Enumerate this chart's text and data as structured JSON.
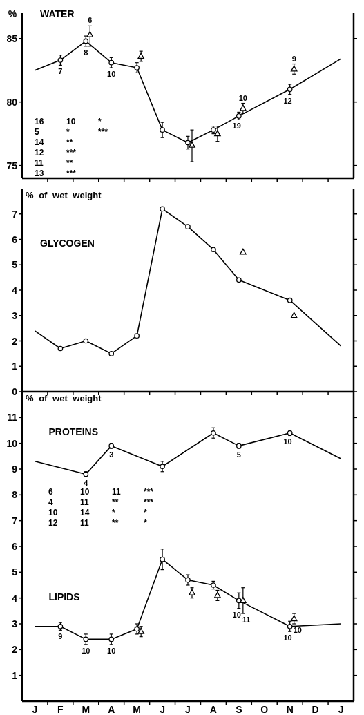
{
  "chart_data": [
    {
      "type": "line",
      "title": "WATER",
      "ylabel": "%",
      "categories": [
        "J",
        "F",
        "M",
        "A",
        "M",
        "J",
        "J",
        "A",
        "S",
        "O",
        "N",
        "D",
        "J"
      ],
      "ylim": [
        74,
        87
      ],
      "yticks": [
        75,
        80,
        85
      ],
      "tick_labels": "y",
      "series": [
        {
          "type": "line",
          "color": "#000000",
          "marker": "none",
          "values": [
            82.5,
            83.3,
            84.8,
            83.1,
            82.7,
            77.8,
            76.8,
            77.8,
            78.9,
            null,
            81.0,
            null,
            83.4
          ]
        },
        {
          "type": "scatter",
          "color": "#000000",
          "marker": "circle",
          "values": [
            null,
            83.3,
            84.8,
            83.1,
            82.7,
            77.8,
            76.8,
            77.8,
            78.9,
            null,
            81.0,
            null,
            null
          ],
          "errors": [
            null,
            0.4,
            0.4,
            0.4,
            0.4,
            0.6,
            0.5,
            0.3,
            0.3,
            null,
            0.4,
            null,
            null
          ]
        },
        {
          "type": "scatter",
          "color": "#000000",
          "marker": "triangle",
          "values": [
            null,
            null,
            85.3,
            null,
            83.6,
            null,
            76.6,
            77.5,
            79.5,
            null,
            82.6,
            null,
            null
          ],
          "errors": [
            null,
            null,
            [
              84.4,
              86.0
            ],
            null,
            0.4,
            null,
            [
              75.3,
              77.8
            ],
            0.6,
            0.4,
            null,
            0.4,
            null,
            null
          ]
        }
      ],
      "annotations": [
        {
          "text": "7",
          "x": "F",
          "y": 83.3
        },
        {
          "text": "8",
          "x": "M",
          "y": 84.8
        },
        {
          "text": "10",
          "x": "A",
          "y": 83.1
        },
        {
          "text": "19",
          "x": "S",
          "y": 78.9
        },
        {
          "text": "12",
          "x": "N",
          "y": 81.0
        },
        {
          "text": "6",
          "x": "M",
          "y": 85.3
        },
        {
          "text": "10",
          "x": "S",
          "y": 79.5
        },
        {
          "text": "9",
          "x": "N",
          "y": 82.6
        },
        "16",
        "5",
        "14",
        "12",
        "11",
        "13",
        "10",
        "*",
        "**",
        "***",
        "**",
        "***",
        "*",
        "***"
      ]
    },
    {
      "type": "line",
      "title": "GLYCOGEN",
      "ylabel": "% of wet weight",
      "categories": [
        "J",
        "F",
        "M",
        "A",
        "M",
        "J",
        "J",
        "A",
        "S",
        "O",
        "N",
        "D",
        "J"
      ],
      "ylim": [
        0,
        8
      ],
      "yticks": [
        0,
        1,
        2,
        3,
        4,
        5,
        6,
        7
      ],
      "tick_labels": "y",
      "series": [
        {
          "type": "line",
          "color": "#000000",
          "marker": "none",
          "values": [
            2.4,
            1.7,
            2.0,
            1.5,
            2.2,
            7.2,
            6.5,
            5.6,
            4.4,
            null,
            3.6,
            null,
            1.8
          ]
        },
        {
          "type": "scatter",
          "color": "#000000",
          "marker": "circle",
          "values": [
            null,
            1.7,
            2.0,
            1.5,
            2.2,
            7.2,
            6.5,
            5.6,
            4.4,
            null,
            3.6,
            null,
            null
          ]
        },
        {
          "type": "scatter",
          "color": "#000000",
          "marker": "triangle",
          "values": [
            null,
            null,
            null,
            null,
            null,
            null,
            null,
            null,
            5.5,
            null,
            3.0,
            null,
            null
          ]
        }
      ]
    },
    {
      "type": "line",
      "ylabel": "% of wet weight",
      "categories": [
        "J",
        "F",
        "M",
        "A",
        "M",
        "J",
        "J",
        "A",
        "S",
        "O",
        "N",
        "D",
        "J"
      ],
      "ylim": [
        0,
        12
      ],
      "yticks": [
        1,
        2,
        3,
        4,
        5,
        6,
        7,
        8,
        9,
        10,
        11
      ],
      "series": [
        {
          "type": "line",
          "name": "PROTEINS",
          "color": "#000000",
          "marker": "none",
          "values": [
            9.3,
            null,
            8.8,
            9.9,
            null,
            9.1,
            null,
            10.4,
            9.9,
            null,
            10.4,
            null,
            9.4
          ]
        },
        {
          "type": "scatter",
          "color": "#000000",
          "marker": "circle",
          "values": [
            null,
            null,
            8.8,
            9.9,
            null,
            9.1,
            null,
            10.4,
            9.9,
            null,
            10.4,
            null,
            null
          ],
          "errors": [
            null,
            null,
            0.1,
            0.1,
            null,
            0.2,
            null,
            0.2,
            0.1,
            null,
            0.1,
            null,
            null
          ]
        },
        {
          "type": "line",
          "name": "LIPIDS",
          "color": "#000000",
          "marker": "none",
          "values": [
            2.9,
            2.9,
            2.4,
            2.4,
            2.8,
            5.5,
            4.7,
            4.5,
            3.9,
            null,
            2.9,
            null,
            3.0
          ]
        },
        {
          "type": "scatter",
          "color": "#000000",
          "marker": "circle",
          "values": [
            null,
            2.9,
            2.4,
            2.4,
            2.8,
            5.5,
            4.7,
            4.5,
            3.9,
            null,
            2.9,
            null,
            null
          ],
          "errors": [
            null,
            0.15,
            0.2,
            0.2,
            0.2,
            0.4,
            0.2,
            0.15,
            0.3,
            null,
            0.2,
            null,
            null
          ]
        },
        {
          "type": "scatter",
          "color": "#000000",
          "marker": "triangle",
          "values": [
            null,
            null,
            null,
            null,
            2.7,
            null,
            4.2,
            4.1,
            3.9,
            null,
            3.2,
            null,
            null
          ],
          "errors": [
            null,
            null,
            null,
            null,
            0.2,
            null,
            0.2,
            0.2,
            [
              3.4,
              4.4
            ],
            null,
            0.2,
            null,
            null
          ]
        }
      ],
      "annotations": [
        {
          "text": "4",
          "x": "M",
          "y": 8.8
        },
        {
          "text": "3",
          "x": "A",
          "y": 9.9
        },
        {
          "text": "5",
          "x": "S",
          "y": 9.9
        },
        {
          "text": "10",
          "x": "N",
          "y": 10.4
        },
        {
          "text": "9",
          "x": "F",
          "y": 2.9
        },
        {
          "text": "10",
          "x": "M",
          "y": 2.4
        },
        {
          "text": "10",
          "x": "A",
          "y": 2.4
        },
        {
          "text": "10",
          "x": "S",
          "y": 3.9
        },
        {
          "text": "10",
          "x": "N",
          "y": 2.9
        },
        {
          "text": "11",
          "x": "S",
          "y": 3.9
        },
        {
          "text": "10",
          "x": "N",
          "y": 3.2
        },
        "6",
        "4",
        "10",
        "12",
        "10",
        "11",
        "14",
        "11",
        "11",
        "**",
        "*",
        "**",
        "***",
        "***",
        "*",
        "*"
      ]
    }
  ]
}
